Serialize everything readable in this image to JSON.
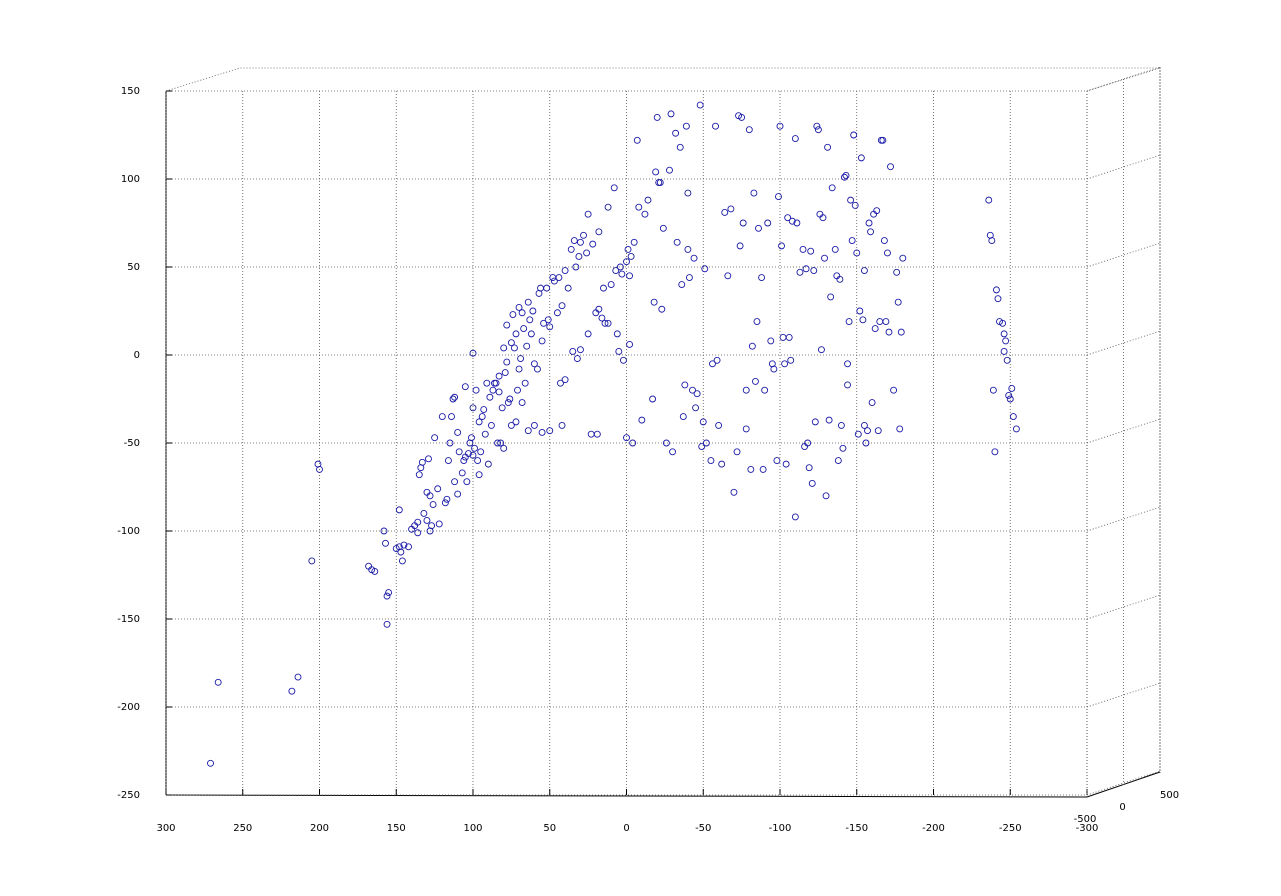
{
  "chart_data": {
    "type": "scatter",
    "color": "#1a1aa6",
    "grid": true,
    "xlim": [
      300,
      -300
    ],
    "xticks": [
      300,
      250,
      200,
      150,
      100,
      50,
      0,
      -50,
      -100,
      -150,
      -200,
      -250,
      -300
    ],
    "ylim": [
      -250,
      150
    ],
    "yticks": [
      -250,
      -200,
      -150,
      -100,
      -50,
      0,
      50,
      100,
      150
    ],
    "zlim": [
      -500,
      500
    ],
    "zticks": [
      -500,
      0,
      500
    ],
    "x": [
      271,
      266,
      218,
      214,
      205,
      201,
      200,
      168,
      166,
      164,
      158,
      157,
      156,
      155,
      156,
      150,
      148,
      147,
      146,
      145,
      142,
      148,
      140,
      138,
      136,
      136,
      135,
      134,
      133,
      132,
      130,
      130,
      129,
      128,
      128,
      127,
      126,
      125,
      123,
      122,
      120,
      118,
      117,
      116,
      115,
      114,
      113,
      112,
      112,
      110,
      110,
      109,
      107,
      106,
      105,
      105,
      104,
      103,
      102,
      101,
      100,
      100,
      100,
      99,
      98,
      97,
      96,
      96,
      95,
      94,
      93,
      92,
      91,
      90,
      89,
      88,
      87,
      86,
      85,
      84,
      83,
      83,
      82,
      81,
      80,
      80,
      79,
      78,
      78,
      77,
      76,
      75,
      75,
      74,
      73,
      72,
      72,
      71,
      70,
      70,
      69,
      68,
      68,
      67,
      66,
      65,
      64,
      64,
      63,
      62,
      61,
      60,
      60,
      58,
      57,
      56,
      55,
      55,
      54,
      52,
      51,
      50,
      50,
      48,
      47,
      45,
      44,
      43,
      42,
      42,
      40,
      40,
      38,
      36,
      35,
      34,
      33,
      32,
      31,
      30,
      30,
      28,
      26,
      25,
      25,
      23,
      22,
      20,
      19,
      18,
      18,
      16,
      15,
      14,
      12,
      12,
      10,
      8,
      7,
      6,
      5,
      4,
      3,
      2,
      0,
      0,
      -1,
      -2,
      -2,
      -3,
      -4,
      -5,
      -7,
      -8,
      -10,
      -12,
      -14,
      -17,
      -18,
      -19,
      -20,
      -21,
      -22,
      -23,
      -24,
      -26,
      -28,
      -29,
      -30,
      -32,
      -33,
      -35,
      -36,
      -37,
      -38,
      -39,
      -40,
      -40,
      -41,
      -43,
      -44,
      -45,
      -46,
      -48,
      -49,
      -50,
      -51,
      -52,
      -55,
      -56,
      -58,
      -59,
      -60,
      -62,
      -64,
      -66,
      -68,
      -70,
      -72,
      -73,
      -74,
      -75,
      -76,
      -78,
      -78,
      -80,
      -81,
      -82,
      -83,
      -84,
      -85,
      -86,
      -88,
      -89,
      -90,
      -92,
      -94,
      -95,
      -96,
      -98,
      -99,
      -100,
      -101,
      -102,
      -103,
      -104,
      -105,
      -106,
      -107,
      -108,
      -110,
      -110,
      -111,
      -113,
      -115,
      -116,
      -117,
      -118,
      -119,
      -120,
      -121,
      -122,
      -123,
      -124,
      -125,
      -126,
      -127,
      -128,
      -129,
      -130,
      -131,
      -132,
      -133,
      -134,
      -136,
      -137,
      -138,
      -139,
      -140,
      -141,
      -142,
      -143,
      -144,
      -144,
      -145,
      -146,
      -147,
      -148,
      -149,
      -150,
      -151,
      -152,
      -153,
      -154,
      -155,
      -155,
      -156,
      -157,
      -158,
      -159,
      -160,
      -161,
      -162,
      -163,
      -164,
      -165,
      -166,
      -167,
      -168,
      -169,
      -170,
      -171,
      -172,
      -174,
      -176,
      -177,
      -178,
      -179,
      -180,
      -236,
      -237,
      -238,
      -239,
      -240,
      -241,
      -242,
      -243,
      -245,
      -246,
      -247,
      -248,
      -249,
      -250,
      -251,
      -252,
      -254,
      -246
    ],
    "values": [
      -232,
      -186,
      -191,
      -183,
      -117,
      -62,
      -65,
      -120,
      -122,
      -123,
      -100,
      -107,
      -137,
      -135,
      -153,
      -110,
      -109,
      -112,
      -117,
      -108,
      -109,
      -88,
      -99,
      -97,
      -95,
      -101,
      -68,
      -64,
      -61,
      -90,
      -94,
      -78,
      -59,
      -80,
      -100,
      -97,
      -85,
      -47,
      -76,
      -96,
      -35,
      -84,
      -82,
      -60,
      -50,
      -35,
      -25,
      -24,
      -72,
      -79,
      -44,
      -55,
      -67,
      -60,
      -58,
      -18,
      -72,
      -56,
      -50,
      -47,
      -57,
      -30,
      1,
      -53,
      -20,
      -60,
      -68,
      -38,
      -55,
      -35,
      -31,
      -45,
      -16,
      -62,
      -24,
      -40,
      -20,
      -16,
      -16,
      -50,
      -12,
      -21,
      -50,
      -30,
      4,
      -53,
      -10,
      -4,
      17,
      -27,
      -25,
      -40,
      7,
      23,
      4,
      -38,
      12,
      -20,
      -8,
      27,
      -2,
      -27,
      24,
      15,
      -16,
      5,
      30,
      -43,
      20,
      12,
      25,
      -5,
      -40,
      -8,
      35,
      38,
      8,
      -44,
      18,
      38,
      20,
      16,
      -43,
      44,
      42,
      24,
      44,
      -16,
      -40,
      28,
      48,
      -14,
      38,
      60,
      2,
      65,
      50,
      -2,
      56,
      64,
      3,
      68,
      58,
      80,
      12,
      -45,
      63,
      24,
      -45,
      70,
      26,
      21,
      38,
      18,
      84,
      18,
      40,
      95,
      48,
      12,
      2,
      50,
      46,
      -3,
      53,
      -47,
      60,
      45,
      6,
      56,
      -50,
      64,
      122,
      84,
      -37,
      80,
      88,
      -25,
      30,
      104,
      135,
      98,
      98,
      26,
      72,
      -50,
      105,
      137,
      -55,
      126,
      64,
      118,
      40,
      -35,
      -17,
      130,
      92,
      60,
      44,
      -20,
      55,
      -30,
      -22,
      142,
      -52,
      -38,
      49,
      -50,
      -60,
      -5,
      130,
      -3,
      -40,
      -62,
      81,
      45,
      83,
      -78,
      -55,
      136,
      62,
      135,
      75,
      -42,
      -20,
      128,
      -65,
      5,
      92,
      -15,
      19,
      72,
      44,
      -65,
      -20,
      75,
      8,
      -5,
      -8,
      -60,
      90,
      130,
      62,
      10,
      -5,
      -62,
      78,
      10,
      -3,
      76,
      123,
      -92,
      75,
      47,
      60,
      -52,
      49,
      -50,
      -64,
      59,
      -73,
      48,
      -38,
      130,
      128,
      80,
      3,
      78,
      55,
      -80,
      118,
      -37,
      33,
      95,
      60,
      45,
      -60,
      43,
      -40,
      -53,
      101,
      102,
      -5,
      -17,
      19,
      88,
      65,
      125,
      85,
      58,
      -45,
      25,
      112,
      20,
      -40,
      48,
      -50,
      -43,
      75,
      70,
      -27,
      80,
      15,
      82,
      -43,
      19,
      122,
      122,
      65,
      19,
      58,
      13,
      107,
      -20,
      47,
      30,
      -42,
      13,
      55,
      88,
      68,
      65,
      -20,
      -55,
      37,
      32,
      19,
      18,
      12,
      8,
      -3,
      -23,
      -25,
      -19,
      -35,
      -42,
      2
    ]
  }
}
